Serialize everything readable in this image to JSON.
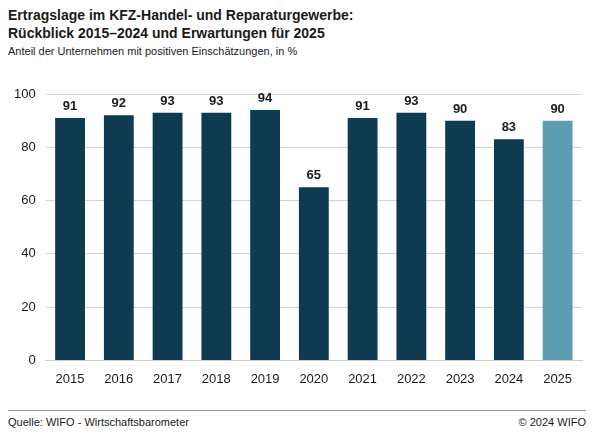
{
  "chart_data": {
    "type": "bar",
    "title": [
      "Ertragslage im KFZ-Handel- und Reparaturgewerbe:",
      "Rückblick 2015–2024 und Erwartungen für 2025"
    ],
    "subtitle": "Anteil der Unternehmen mit positiven Einschätzungen, in %",
    "categories": [
      "2015",
      "2016",
      "2017",
      "2018",
      "2019",
      "2020",
      "2021",
      "2022",
      "2023",
      "2024",
      "2025"
    ],
    "values": [
      91,
      92,
      93,
      93,
      94,
      65,
      91,
      93,
      90,
      83,
      90
    ],
    "colors": [
      "#0e3b52",
      "#0e3b52",
      "#0e3b52",
      "#0e3b52",
      "#0e3b52",
      "#0e3b52",
      "#0e3b52",
      "#0e3b52",
      "#0e3b52",
      "#0e3b52",
      "#5c9bb0"
    ],
    "ylim": [
      0,
      100
    ],
    "yticks": [
      0,
      20,
      40,
      60,
      80,
      100
    ],
    "grid": true,
    "data_labels": true,
    "source": "Quelle: WIFO - Wirtschaftsbarometer",
    "copyright": "© 2024 WIFO"
  }
}
